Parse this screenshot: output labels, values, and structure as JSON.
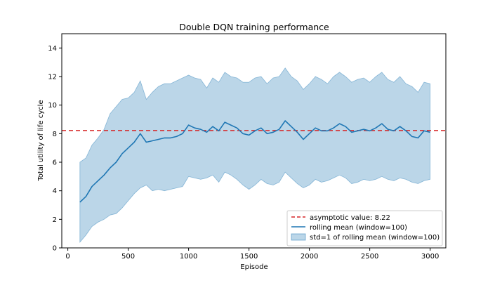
{
  "chart_data": {
    "type": "line",
    "title": "Double DQN training performance",
    "xlabel": "Episode",
    "ylabel": "Total utility of life cycle",
    "xlim": [
      -50,
      3130
    ],
    "ylim": [
      0,
      15
    ],
    "xticks": [
      0,
      500,
      1000,
      1500,
      2000,
      2500,
      3000
    ],
    "yticks": [
      0,
      2,
      4,
      6,
      8,
      10,
      12,
      14
    ],
    "grid": false,
    "legend_position": "lower-right",
    "hline": {
      "name": "asymptotic value: 8.22",
      "y": 8.22,
      "color": "#d62728",
      "style": "dashed"
    },
    "series": [
      {
        "name": "rolling mean (window=100)",
        "color": "#1f77b4",
        "x": [
          100,
          150,
          200,
          250,
          300,
          350,
          400,
          450,
          500,
          550,
          600,
          650,
          700,
          750,
          800,
          850,
          900,
          950,
          1000,
          1050,
          1100,
          1150,
          1200,
          1250,
          1300,
          1350,
          1400,
          1450,
          1500,
          1550,
          1600,
          1650,
          1700,
          1750,
          1800,
          1850,
          1900,
          1950,
          2000,
          2050,
          2100,
          2150,
          2200,
          2250,
          2300,
          2350,
          2400,
          2450,
          2500,
          2550,
          2600,
          2650,
          2700,
          2750,
          2800,
          2850,
          2900,
          2950,
          3000
        ],
        "y": [
          3.2,
          3.6,
          4.3,
          4.7,
          5.1,
          5.6,
          6.0,
          6.6,
          7.0,
          7.4,
          8.0,
          7.4,
          7.5,
          7.6,
          7.7,
          7.7,
          7.8,
          8.0,
          8.6,
          8.4,
          8.3,
          8.1,
          8.5,
          8.2,
          8.8,
          8.6,
          8.4,
          8.0,
          7.9,
          8.2,
          8.4,
          8.0,
          8.1,
          8.3,
          8.9,
          8.5,
          8.1,
          7.6,
          8.0,
          8.4,
          8.2,
          8.2,
          8.4,
          8.7,
          8.5,
          8.1,
          8.2,
          8.3,
          8.2,
          8.4,
          8.7,
          8.3,
          8.2,
          8.5,
          8.2,
          7.8,
          7.7,
          8.2,
          8.1
        ]
      }
    ],
    "band": {
      "name": "std=1 of rolling mean (window=100)",
      "color": "#1f77b4",
      "fill_opacity": 0.3,
      "x": [
        100,
        150,
        200,
        250,
        300,
        350,
        400,
        450,
        500,
        550,
        600,
        650,
        700,
        750,
        800,
        850,
        900,
        950,
        1000,
        1050,
        1100,
        1150,
        1200,
        1250,
        1300,
        1350,
        1400,
        1450,
        1500,
        1550,
        1600,
        1650,
        1700,
        1750,
        1800,
        1850,
        1900,
        1950,
        2000,
        2050,
        2100,
        2150,
        2200,
        2250,
        2300,
        2350,
        2400,
        2450,
        2500,
        2550,
        2600,
        2650,
        2700,
        2750,
        2800,
        2850,
        2900,
        2950,
        3000
      ],
      "upper": [
        6.0,
        6.3,
        7.2,
        7.7,
        8.3,
        9.4,
        9.9,
        10.4,
        10.5,
        10.9,
        11.7,
        10.4,
        10.9,
        11.3,
        11.5,
        11.5,
        11.7,
        11.9,
        12.1,
        11.9,
        11.8,
        11.2,
        11.9,
        11.6,
        12.3,
        12.0,
        11.9,
        11.6,
        11.6,
        11.9,
        12.0,
        11.5,
        11.9,
        12.0,
        12.6,
        12.0,
        11.7,
        11.1,
        11.5,
        12.0,
        11.8,
        11.5,
        12.0,
        12.3,
        12.0,
        11.6,
        11.8,
        11.9,
        11.6,
        12.0,
        12.3,
        11.8,
        11.6,
        12.0,
        11.5,
        11.3,
        10.9,
        11.6,
        11.5
      ],
      "lower": [
        0.4,
        0.9,
        1.5,
        1.8,
        2.0,
        2.3,
        2.4,
        2.8,
        3.3,
        3.8,
        4.2,
        4.4,
        4.0,
        4.1,
        4.0,
        4.1,
        4.2,
        4.3,
        5.0,
        4.9,
        4.8,
        4.9,
        5.1,
        4.6,
        5.3,
        5.1,
        4.8,
        4.4,
        4.1,
        4.4,
        4.8,
        4.5,
        4.4,
        4.6,
        5.3,
        4.9,
        4.5,
        4.2,
        4.4,
        4.8,
        4.6,
        4.7,
        4.9,
        5.1,
        4.9,
        4.5,
        4.6,
        4.8,
        4.7,
        4.8,
        5.0,
        4.8,
        4.7,
        4.9,
        4.8,
        4.6,
        4.5,
        4.7,
        4.8
      ]
    }
  }
}
